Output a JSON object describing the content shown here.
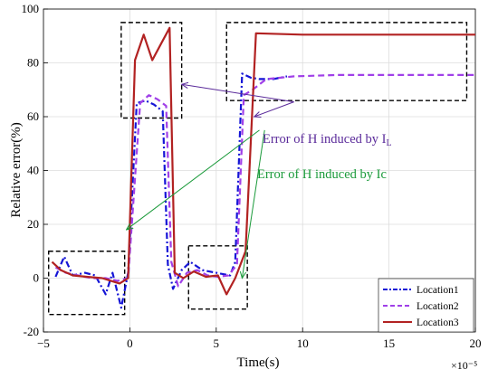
{
  "chart_data": {
    "type": "line",
    "xlabel": "Time(s)",
    "ylabel": "Relative error(%)",
    "x_multiplier": "×10⁻⁵",
    "xlim": [
      -5,
      20
    ],
    "ylim": [
      -20,
      100
    ],
    "xticks": [
      "-5",
      "0",
      "5",
      "10",
      "15",
      "20"
    ],
    "yticks": [
      "-20",
      "0",
      "20",
      "40",
      "60",
      "80",
      "100"
    ],
    "grid": true,
    "legend_position": "bottom-right",
    "series": [
      {
        "name": "Location1",
        "color": "#1515d6",
        "dash": "dash-dot",
        "points": [
          [
            -4.3,
            0.5
          ],
          [
            -3.8,
            8.0
          ],
          [
            -3.3,
            1.0
          ],
          [
            -2.6,
            2.0
          ],
          [
            -2.0,
            1.0
          ],
          [
            -1.4,
            -6.0
          ],
          [
            -1.0,
            2.0
          ],
          [
            -0.5,
            -11.0
          ],
          [
            -0.1,
            2.0
          ],
          [
            0.4,
            65.0
          ],
          [
            0.9,
            66.0
          ],
          [
            1.4,
            64.5
          ],
          [
            1.9,
            62.0
          ],
          [
            2.2,
            5.0
          ],
          [
            2.5,
            -4.0
          ],
          [
            3.0,
            3.0
          ],
          [
            3.5,
            6.0
          ],
          [
            4.2,
            3.0
          ],
          [
            5.0,
            2.0
          ],
          [
            5.8,
            1.0
          ],
          [
            6.1,
            6.0
          ],
          [
            6.5,
            76.0
          ],
          [
            7.0,
            74.5
          ],
          [
            7.5,
            74.0
          ],
          [
            8.3,
            74.0
          ],
          [
            9.1,
            75.0
          ]
        ]
      },
      {
        "name": "Location2",
        "color": "#a040e8",
        "dash": "dashed",
        "points": [
          [
            -4.3,
            4.0
          ],
          [
            -3.7,
            2.0
          ],
          [
            -3.0,
            1.0
          ],
          [
            -2.2,
            0.0
          ],
          [
            -1.4,
            0.0
          ],
          [
            -0.7,
            -1.0
          ],
          [
            -0.1,
            0.0
          ],
          [
            0.6,
            65.0
          ],
          [
            1.1,
            68.0
          ],
          [
            1.6,
            66.5
          ],
          [
            2.1,
            64.0
          ],
          [
            2.4,
            6.0
          ],
          [
            2.8,
            -3.0
          ],
          [
            3.3,
            2.0
          ],
          [
            3.9,
            3.0
          ],
          [
            4.5,
            1.0
          ],
          [
            5.1,
            0.5
          ],
          [
            5.7,
            1.0
          ],
          [
            6.2,
            5.0
          ],
          [
            6.6,
            68.0
          ],
          [
            7.1,
            70.0
          ],
          [
            7.9,
            74.0
          ],
          [
            9.5,
            75.0
          ],
          [
            12.0,
            75.5
          ],
          [
            16.0,
            75.5
          ],
          [
            20.0,
            75.5
          ]
        ]
      },
      {
        "name": "Location3",
        "color": "#b22222",
        "dash": "solid",
        "points": [
          [
            -4.5,
            6.0
          ],
          [
            -4.0,
            3.0
          ],
          [
            -3.3,
            1.0
          ],
          [
            -2.5,
            0.5
          ],
          [
            -1.6,
            0.0
          ],
          [
            -0.6,
            -2.0
          ],
          [
            -0.1,
            0.0
          ],
          [
            0.3,
            81.0
          ],
          [
            0.8,
            90.5
          ],
          [
            1.3,
            81.0
          ],
          [
            1.8,
            87.0
          ],
          [
            2.3,
            93.0
          ],
          [
            2.6,
            2.0
          ],
          [
            3.1,
            0.0
          ],
          [
            3.7,
            2.5
          ],
          [
            4.4,
            0.5
          ],
          [
            5.1,
            1.0
          ],
          [
            5.6,
            -6.0
          ],
          [
            6.1,
            0.0
          ],
          [
            6.7,
            10.0
          ],
          [
            7.3,
            91.0
          ],
          [
            10.0,
            90.5
          ],
          [
            20.0,
            90.5
          ]
        ]
      }
    ],
    "annotations": [
      {
        "text": "Error of H induced by I",
        "subscript": "L",
        "color": "#5a2a9a"
      },
      {
        "text": "Error of H induced by Ic",
        "color": "#1a9a3a"
      }
    ]
  }
}
